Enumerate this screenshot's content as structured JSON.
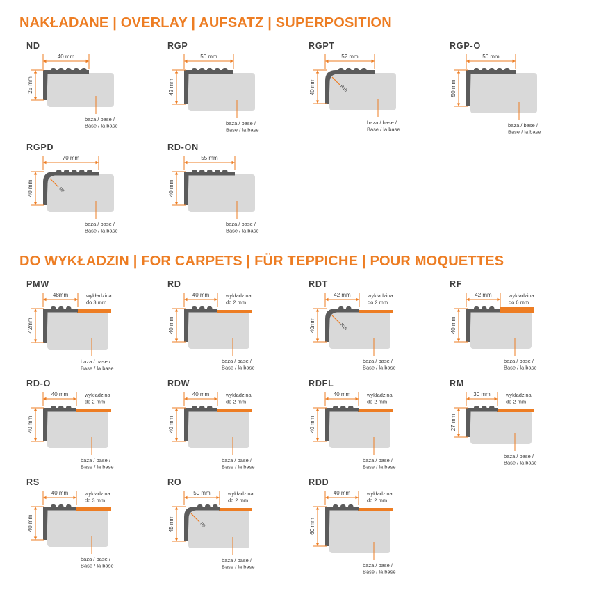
{
  "colors": {
    "accent": "#ED7D23",
    "profile": "#5B5B5B",
    "base": "#D9D9D9",
    "text": "#3D3D3D"
  },
  "base_label": {
    "line1": "baza / base /",
    "line2": "Base / la base"
  },
  "sections": [
    {
      "title": "NAKŁADANE | OVERLAY | AUFSATZ | SUPERPOSITION",
      "diagrams": [
        {
          "name": "ND",
          "width_label": "40 mm",
          "width_mm": 40,
          "height_label": "25 mm",
          "height_mm": 25,
          "corner": "square"
        },
        {
          "name": "RGP",
          "width_label": "50 mm",
          "width_mm": 50,
          "height_label": "42 mm",
          "height_mm": 42,
          "corner": "square"
        },
        {
          "name": "RGPT",
          "width_label": "52 mm",
          "width_mm": 52,
          "height_label": "40 mm",
          "height_mm": 40,
          "corner": "rounded",
          "radius_label": "R15"
        },
        {
          "name": "RGP-O",
          "width_label": "50 mm",
          "width_mm": 50,
          "height_label": "50 mm",
          "height_mm": 50,
          "corner": "square"
        },
        {
          "name": "RGPD",
          "width_label": "70 mm",
          "width_mm": 70,
          "height_label": "40 mm",
          "height_mm": 40,
          "corner": "rounded",
          "radius_label": "R8"
        },
        {
          "name": "RD-ON",
          "width_label": "55 mm",
          "width_mm": 55,
          "height_label": "40 mm",
          "height_mm": 40,
          "corner": "square"
        }
      ]
    },
    {
      "title": "DO WYKŁADZIN | FOR CARPETS | FÜR TEPPICHE | POUR MOQUETTES",
      "diagrams": [
        {
          "name": "PMW",
          "width_label": "48mm",
          "width_mm": 48,
          "height_label": "42mm",
          "height_mm": 42,
          "corner": "square",
          "carpet": {
            "line1": "wykładzina",
            "line2": "do 3 mm",
            "mm": 3
          }
        },
        {
          "name": "RD",
          "width_label": "40 mm",
          "width_mm": 40,
          "height_label": "40 mm",
          "height_mm": 40,
          "corner": "square",
          "carpet": {
            "line1": "wykładzina",
            "line2": "do 2 mm",
            "mm": 2
          }
        },
        {
          "name": "RDT",
          "width_label": "42 mm",
          "width_mm": 42,
          "height_label": "40mm",
          "height_mm": 40,
          "corner": "rounded",
          "radius_label": "R15",
          "carpet": {
            "line1": "wykładzina",
            "line2": "do 2 mm",
            "mm": 2
          }
        },
        {
          "name": "RF",
          "width_label": "42 mm",
          "width_mm": 42,
          "height_label": "40 mm",
          "height_mm": 40,
          "corner": "square",
          "carpet": {
            "line1": "wykładzina",
            "line2": "do 6 mm",
            "mm": 6
          }
        },
        {
          "name": "RD-O",
          "width_label": "40 mm",
          "width_mm": 40,
          "height_label": "40 mm",
          "height_mm": 40,
          "corner": "square",
          "carpet": {
            "line1": "wykładzina",
            "line2": "do 2 mm",
            "mm": 2
          }
        },
        {
          "name": "RDW",
          "width_label": "40 mm",
          "width_mm": 40,
          "height_label": "40 mm",
          "height_mm": 40,
          "corner": "square",
          "carpet": {
            "line1": "wykładzina",
            "line2": "do 2 mm",
            "mm": 2
          }
        },
        {
          "name": "RDFL",
          "width_label": "40 mm",
          "width_mm": 40,
          "height_label": "40 mm",
          "height_mm": 40,
          "corner": "square",
          "carpet": {
            "line1": "wykładzina",
            "line2": "do 2 mm",
            "mm": 2
          }
        },
        {
          "name": "RM",
          "width_label": "30 mm",
          "width_mm": 30,
          "height_label": "27 mm",
          "height_mm": 27,
          "corner": "square",
          "carpet": {
            "line1": "wykładzina",
            "line2": "do 2 mm",
            "mm": 2
          }
        },
        {
          "name": "RS",
          "width_label": "40 mm",
          "width_mm": 40,
          "height_label": "40 mm",
          "height_mm": 40,
          "corner": "square",
          "carpet": {
            "line1": "wykładzina",
            "line2": "do 3 mm",
            "mm": 3
          }
        },
        {
          "name": "RO",
          "width_label": "50 mm",
          "width_mm": 50,
          "height_label": "45 mm",
          "height_mm": 45,
          "corner": "rounded",
          "radius_label": "R9",
          "carpet": {
            "line1": "wykładzina",
            "line2": "do 2 mm",
            "mm": 2
          }
        },
        {
          "name": "RDD",
          "width_label": "40 mm",
          "width_mm": 40,
          "height_label": "60 mm",
          "height_mm": 60,
          "corner": "square",
          "carpet": {
            "line1": "wykładzina",
            "line2": "do 2 mm",
            "mm": 2
          }
        }
      ]
    }
  ]
}
